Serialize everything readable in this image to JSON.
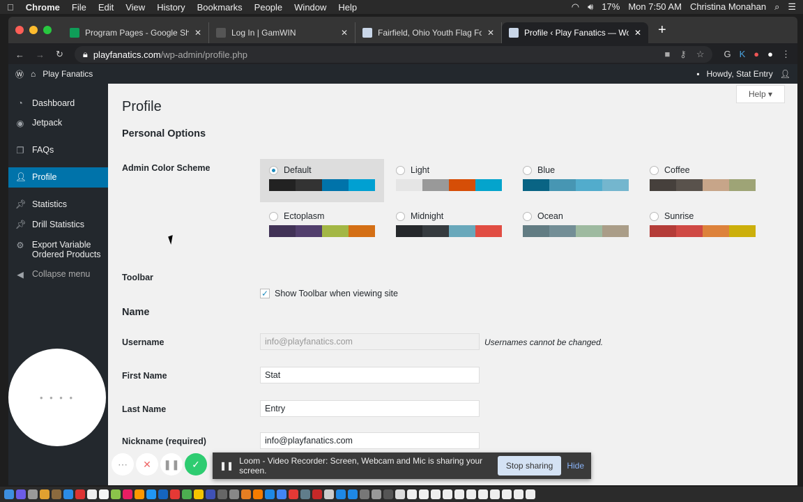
{
  "menubar": {
    "apple": "",
    "app": "Chrome",
    "items": [
      "File",
      "Edit",
      "View",
      "History",
      "Bookmarks",
      "People",
      "Window",
      "Help"
    ],
    "battery": "17%",
    "clock": "Mon 7:50 AM",
    "user": "Christina Monahan"
  },
  "tabs": [
    {
      "title": "Program Pages - Google Sheets",
      "favicon_color": "#0f9d58"
    },
    {
      "title": "Log In | GamWIN",
      "favicon_color": "#555555"
    },
    {
      "title": "Fairfield, Ohio Youth Flag Football",
      "favicon_color": "#c9d6e8"
    },
    {
      "title": "Profile ‹ Play Fanatics — WordPress",
      "favicon_color": "#c9d6e8",
      "active": true
    }
  ],
  "address": {
    "domain": "playfanatics.com",
    "path": "/wp-admin/profile.php"
  },
  "adminbar": {
    "site": "Play Fanatics",
    "howdy": "Howdy, Stat Entry"
  },
  "sidebar": {
    "items": [
      {
        "label": "Dashboard",
        "icon": "gauge-icon"
      },
      {
        "label": "Jetpack",
        "icon": "jetpack-icon"
      },
      {
        "label": "FAQs",
        "icon": "pages-icon"
      },
      {
        "label": "Profile",
        "icon": "user-icon",
        "current": true
      },
      {
        "label": "Statistics",
        "icon": "pin-icon"
      },
      {
        "label": "Drill Statistics",
        "icon": "pin-icon"
      },
      {
        "label": "Export Variable Ordered Products",
        "icon": "gear-icon"
      },
      {
        "label": "Collapse menu",
        "icon": "collapse-icon"
      }
    ]
  },
  "main": {
    "help": "Help ▾",
    "title": "Profile",
    "personal_options": "Personal Options",
    "admin_color_scheme": "Admin Color Scheme",
    "schemes": [
      {
        "name": "Default",
        "selected": true,
        "colors": [
          "#222222",
          "#333333",
          "#0073aa",
          "#00a0d2"
        ]
      },
      {
        "name": "Light",
        "colors": [
          "#e5e5e5",
          "#999999",
          "#d64e07",
          "#04a4cc"
        ]
      },
      {
        "name": "Blue",
        "colors": [
          "#096484",
          "#4796b3",
          "#52accc",
          "#74b6ce"
        ]
      },
      {
        "name": "Coffee",
        "colors": [
          "#46403c",
          "#59524c",
          "#c7a589",
          "#9ea476"
        ]
      },
      {
        "name": "Ectoplasm",
        "colors": [
          "#413256",
          "#523f6d",
          "#a3b745",
          "#d46f15"
        ]
      },
      {
        "name": "Midnight",
        "colors": [
          "#25282b",
          "#363b3f",
          "#69a8bb",
          "#e14d43"
        ]
      },
      {
        "name": "Ocean",
        "colors": [
          "#627c83",
          "#738e96",
          "#9ebaa0",
          "#aa9d88"
        ]
      },
      {
        "name": "Sunrise",
        "colors": [
          "#b43c38",
          "#cf4944",
          "#dd823b",
          "#ccaf0b"
        ]
      }
    ],
    "toolbar_label": "Toolbar",
    "toolbar_check": "Show Toolbar when viewing site",
    "toolbar_checked": true,
    "name_heading": "Name",
    "username_label": "Username",
    "username_value": "info@playfanatics.com",
    "username_note": "Usernames cannot be changed.",
    "first_name_label": "First Name",
    "first_name_value": "Stat",
    "last_name_label": "Last Name",
    "last_name_value": "Entry",
    "nickname_label": "Nickname (required)",
    "nickname_value": "info@playfanatics.com"
  },
  "loom": {
    "message": "Loom - Video Recorder: Screen, Webcam and Mic is sharing your screen.",
    "stop": "Stop sharing",
    "hide": "Hide",
    "camera_dots": "• • • •"
  }
}
